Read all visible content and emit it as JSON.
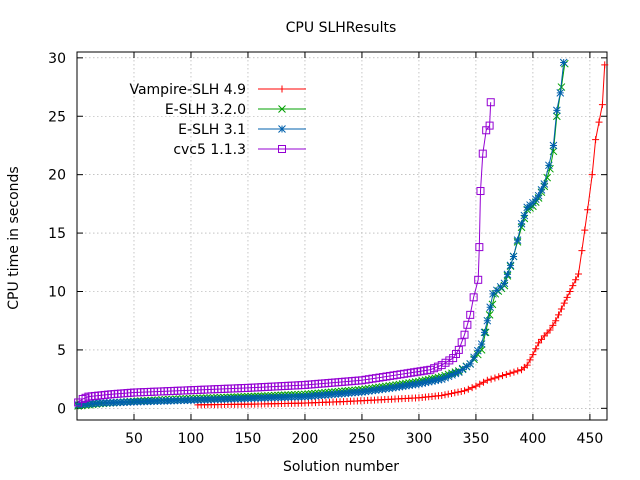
{
  "chart_data": {
    "type": "line",
    "title": "CPU SLHResults",
    "xlabel": "Solution number",
    "ylabel": "CPU time in seconds",
    "xlim": [
      0,
      465
    ],
    "ylim": [
      -1,
      30.5
    ],
    "xticks": [
      50,
      100,
      150,
      200,
      250,
      300,
      350,
      400,
      450
    ],
    "yticks": [
      0,
      5,
      10,
      15,
      20,
      25,
      30
    ],
    "grid": true,
    "legend_position": "top-left",
    "series": [
      {
        "name": "Vampire-SLH 4.9",
        "color": "#ff0000",
        "marker": "plus",
        "points": [
          [
            106,
            0.3
          ],
          [
            150,
            0.35
          ],
          [
            200,
            0.45
          ],
          [
            240,
            0.6
          ],
          [
            270,
            0.75
          ],
          [
            300,
            0.9
          ],
          [
            320,
            1.1
          ],
          [
            340,
            1.5
          ],
          [
            350,
            1.9
          ],
          [
            360,
            2.4
          ],
          [
            370,
            2.7
          ],
          [
            380,
            3.0
          ],
          [
            390,
            3.3
          ],
          [
            395,
            3.7
          ],
          [
            400,
            4.6
          ],
          [
            405,
            5.6
          ],
          [
            410,
            6.2
          ],
          [
            415,
            6.7
          ],
          [
            420,
            7.5
          ],
          [
            425,
            8.5
          ],
          [
            430,
            9.5
          ],
          [
            435,
            10.5
          ],
          [
            440,
            11.5
          ],
          [
            443,
            13.5
          ],
          [
            448,
            17
          ],
          [
            452,
            20
          ],
          [
            455,
            23
          ],
          [
            458,
            24.5
          ],
          [
            461,
            26
          ],
          [
            463,
            29.4
          ]
        ]
      },
      {
        "name": "E-SLH 3.2.0",
        "color": "#00a000",
        "marker": "x",
        "points": [
          [
            1,
            0.2
          ],
          [
            20,
            0.4
          ],
          [
            50,
            0.6
          ],
          [
            90,
            0.8
          ],
          [
            150,
            1.0
          ],
          [
            200,
            1.2
          ],
          [
            250,
            1.6
          ],
          [
            280,
            2.0
          ],
          [
            300,
            2.3
          ],
          [
            320,
            2.7
          ],
          [
            335,
            3.2
          ],
          [
            345,
            3.8
          ],
          [
            355,
            5.0
          ],
          [
            362,
            8.0
          ],
          [
            367,
            9.8
          ],
          [
            375,
            10.5
          ],
          [
            383,
            13
          ],
          [
            390,
            15.5
          ],
          [
            395,
            17
          ],
          [
            400,
            17.3
          ],
          [
            405,
            18
          ],
          [
            410,
            19
          ],
          [
            415,
            20.5
          ],
          [
            418,
            22
          ],
          [
            421,
            25
          ],
          [
            425,
            27.5
          ],
          [
            428,
            29.5
          ]
        ]
      },
      {
        "name": "E-SLH 3.1",
        "color": "#0060ad",
        "marker": "star",
        "points": [
          [
            1,
            0.3
          ],
          [
            20,
            0.45
          ],
          [
            50,
            0.55
          ],
          [
            100,
            0.7
          ],
          [
            150,
            0.85
          ],
          [
            200,
            1.0
          ],
          [
            250,
            1.4
          ],
          [
            280,
            1.8
          ],
          [
            300,
            2.1
          ],
          [
            320,
            2.5
          ],
          [
            335,
            3.1
          ],
          [
            345,
            3.8
          ],
          [
            355,
            5.5
          ],
          [
            360,
            7.5
          ],
          [
            365,
            9.8
          ],
          [
            375,
            10.7
          ],
          [
            383,
            13
          ],
          [
            390,
            15.8
          ],
          [
            395,
            17.2
          ],
          [
            400,
            17.6
          ],
          [
            405,
            18.2
          ],
          [
            410,
            19.2
          ],
          [
            414,
            20.8
          ],
          [
            418,
            22.5
          ],
          [
            421,
            25.5
          ],
          [
            424,
            27
          ],
          [
            427,
            29.6
          ]
        ]
      },
      {
        "name": "cvc5 1.1.3",
        "color": "#9400d3",
        "marker": "square",
        "points": [
          [
            1,
            0.5
          ],
          [
            5,
            0.8
          ],
          [
            10,
            1.0
          ],
          [
            30,
            1.2
          ],
          [
            50,
            1.35
          ],
          [
            100,
            1.55
          ],
          [
            150,
            1.75
          ],
          [
            200,
            2.0
          ],
          [
            250,
            2.4
          ],
          [
            290,
            3.0
          ],
          [
            310,
            3.3
          ],
          [
            320,
            3.7
          ],
          [
            330,
            4.3
          ],
          [
            335,
            5.0
          ],
          [
            340,
            6.3
          ],
          [
            345,
            8.0
          ],
          [
            348,
            9.5
          ],
          [
            352,
            11.0
          ],
          [
            353,
            13.8
          ],
          [
            354,
            18.6
          ],
          [
            356,
            21.8
          ],
          [
            359,
            23.8
          ],
          [
            362,
            24.2
          ],
          [
            363,
            26.2
          ]
        ]
      }
    ]
  }
}
